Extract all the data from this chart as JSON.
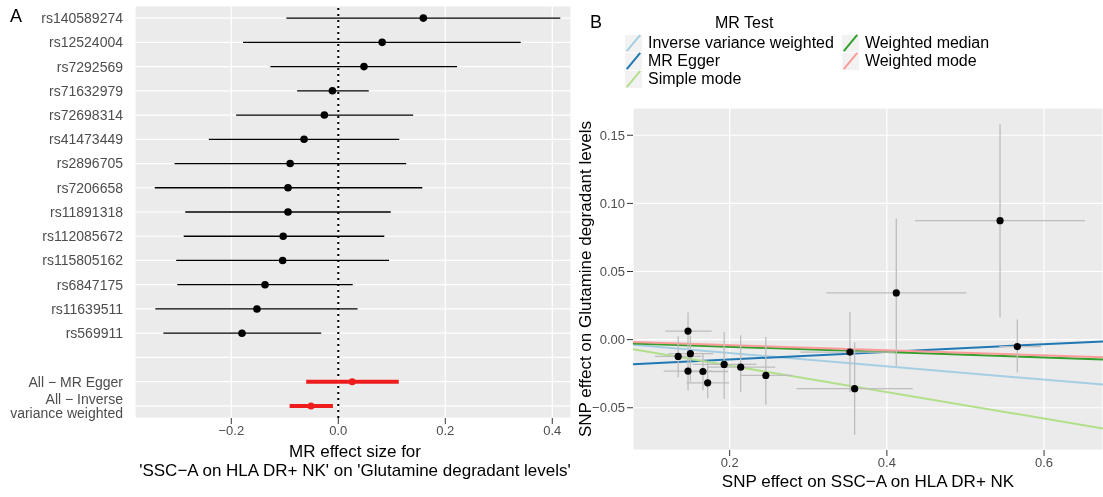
{
  "chart_data": [
    {
      "type": "scatter",
      "title": "A",
      "orientation": "horizontal",
      "xlabel": "MR effect size for\n'SSC−A on HLA DR+ NK' on 'Glutamine degradant levels'",
      "categories": [
        "rs140589274",
        "rs12524004",
        "rs7292569",
        "rs71632979",
        "rs72698314",
        "rs41473449",
        "rs2896705",
        "rs7206658",
        "rs11891318",
        "rs112085672",
        "rs115805162",
        "rs6847175",
        "rs11639511",
        "rs569911",
        null,
        "All − MR Egger",
        "All − Inverse variance weighted"
      ],
      "xlim": [
        -0.38,
        0.435
      ],
      "xticks": [
        {
          "value": -0.2,
          "label": "−0.2"
        },
        {
          "value": 0,
          "label": "0.0"
        },
        0.2,
        0.4
      ],
      "grid": true,
      "ref_lines": [
        {
          "axis": "x",
          "value": 0,
          "line_style": "dotted",
          "color": "#000000"
        }
      ],
      "series": [
        {
          "color": "#000000",
          "values": [
            0.159,
            0.082,
            0.048,
            -0.011,
            -0.026,
            -0.064,
            -0.09,
            -0.094,
            -0.094,
            -0.103,
            -0.104,
            -0.137,
            -0.152,
            -0.18,
            null,
            null,
            null
          ],
          "errors": [
            [
              -0.097,
              0.415
            ],
            [
              -0.178,
              0.341
            ],
            [
              -0.127,
              0.222
            ],
            [
              -0.077,
              0.057
            ],
            [
              -0.191,
              0.14
            ],
            [
              -0.242,
              0.114
            ],
            [
              -0.306,
              0.127
            ],
            [
              -0.343,
              0.157
            ],
            [
              -0.286,
              0.098
            ],
            [
              -0.289,
              0.086
            ],
            [
              -0.303,
              0.095
            ],
            [
              -0.301,
              0.027
            ],
            [
              -0.342,
              0.036
            ],
            [
              -0.327,
              -0.032
            ],
            null,
            null,
            null
          ]
        },
        {
          "color": "#ee1c1c",
          "values": [
            null,
            null,
            null,
            null,
            null,
            null,
            null,
            null,
            null,
            null,
            null,
            null,
            null,
            null,
            null,
            0.026,
            -0.051
          ],
          "errors": [
            null,
            null,
            null,
            null,
            null,
            null,
            null,
            null,
            null,
            null,
            null,
            null,
            null,
            null,
            null,
            [
              -0.06,
              0.113
            ],
            [
              -0.091,
              -0.01
            ]
          ]
        }
      ]
    },
    {
      "type": "scatter",
      "title": "B",
      "xlabel": "SNP effect on SSC−A on HLA DR+ NK",
      "ylabel": "SNP effect on Glutamine degradant levels",
      "legend_title": "MR Test",
      "legend": "top",
      "xlim": [
        0.077,
        0.675
      ],
      "ylim": [
        -0.081,
        0.17
      ],
      "xticks": [
        0.2,
        0.4,
        0.6
      ],
      "yticks": [
        {
          "value": -0.05,
          "label": "−0.05"
        },
        {
          "value": 0,
          "label": "0.00"
        },
        0.05,
        {
          "value": 0.1,
          "label": "0.10"
        },
        0.15
      ],
      "grid": true,
      "series": [
        {
          "type": "line",
          "name": "Inverse variance weighted",
          "color": "#a6cee3",
          "x": [
            0.077,
            0.675
          ],
          "values": [
            -0.0038,
            -0.033
          ]
        },
        {
          "type": "line",
          "name": "MR Egger",
          "color": "#1f78b4",
          "x": [
            0.077,
            0.675
          ],
          "values": [
            -0.018,
            -0.0013
          ]
        },
        {
          "type": "line",
          "name": "Simple mode",
          "color": "#b2df8a",
          "x": [
            0.077,
            0.675
          ],
          "values": [
            -0.0071,
            -0.0652
          ]
        },
        {
          "type": "line",
          "name": "Weighted median",
          "color": "#33a02c",
          "x": [
            0.077,
            0.675
          ],
          "values": [
            -0.0028,
            -0.0145
          ]
        },
        {
          "type": "line",
          "name": "Weighted mode",
          "color": "#fb9a99",
          "x": [
            0.077,
            0.675
          ],
          "values": [
            -0.0018,
            -0.0129
          ]
        },
        {
          "type": "scatter",
          "color": "#000000",
          "x": [
            0.544,
            0.412,
            0.566,
            0.353,
            0.359,
            0.147,
            0.1345,
            0.15,
            0.147,
            0.166,
            0.172,
            0.193,
            0.214,
            0.246
          ],
          "values": [
            0.0873,
            0.0343,
            -0.0051,
            -0.0091,
            -0.036,
            0.0063,
            -0.0123,
            -0.0103,
            -0.0231,
            -0.0234,
            -0.0317,
            -0.0182,
            -0.0202,
            -0.0263
          ],
          "errors": [
            [
              0.0165,
              0.158
            ],
            [
              -0.0195,
              0.0888
            ],
            [
              -0.0241,
              0.0147
            ],
            [
              -0.0386,
              0.0204
            ],
            [
              -0.0698,
              -0.002
            ],
            [
              -0.0065,
              0.0199
            ],
            [
              -0.0276,
              0.0024
            ],
            [
              -0.031,
              0.003
            ],
            [
              -0.0374,
              -0.0079
            ],
            [
              -0.0372,
              -0.0105
            ],
            [
              -0.0432,
              -0.0155
            ],
            [
              -0.0435,
              0.0056
            ],
            [
              -0.0385,
              0.0033
            ],
            [
              -0.0478,
              0.0021
            ]
          ],
          "xerrors": [
            [
              0.436,
              0.652
            ],
            [
              0.323,
              0.501
            ],
            [
              0.543,
              0.596
            ],
            [
              0.29,
              0.41
            ],
            [
              0.285,
              0.433
            ],
            [
              0.118,
              0.177
            ],
            [
              0.105,
              0.164
            ],
            [
              0.122,
              0.179
            ],
            [
              0.116,
              0.177
            ],
            [
              0.141,
              0.198
            ],
            [
              0.145,
              0.1995
            ],
            [
              0.153,
              0.234
            ],
            [
              0.171,
              0.258
            ],
            [
              0.213,
              0.28
            ]
          ]
        }
      ]
    }
  ]
}
